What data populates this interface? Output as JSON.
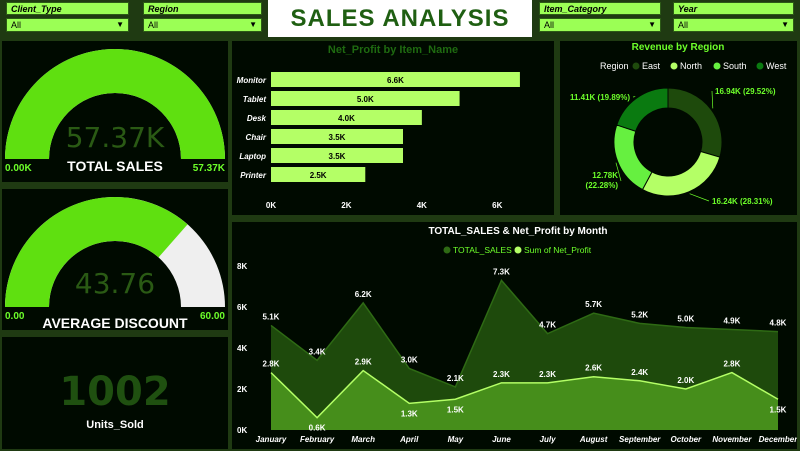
{
  "header": {
    "title": "SALES ANALYSIS"
  },
  "slicers": [
    {
      "label": "Client_Type",
      "value": "All"
    },
    {
      "label": "Region",
      "value": "All"
    },
    {
      "label": "Item_Category",
      "value": "All"
    },
    {
      "label": "Year",
      "value": "All"
    }
  ],
  "kpis": {
    "total_sales": {
      "value": "57.37K",
      "label": "TOTAL SALES",
      "min": "0.00K",
      "max": "57.37K",
      "fraction": 1.0
    },
    "avg_discount": {
      "value": "43.76",
      "label": "AVERAGE DISCOUNT",
      "min": "0.00",
      "max": "60.00",
      "fraction": 0.7293
    },
    "units_sold": {
      "value": "1002",
      "label": "Units_Sold"
    }
  },
  "colors": {
    "accent": "#5fe010",
    "dark_green": "#1e4a0c",
    "light_green": "#b4ff66",
    "background": "#000a00",
    "gauge_track": "#efefef"
  },
  "chart_data": [
    {
      "type": "bar",
      "title": "Net_Profit by Item_Name",
      "categories": [
        "Monitor",
        "Tablet",
        "Desk",
        "Chair",
        "Laptop",
        "Printer"
      ],
      "values": [
        6.6,
        5.0,
        4.0,
        3.5,
        3.5,
        2.5
      ],
      "data_labels": [
        "6.6K",
        "5.0K",
        "4.0K",
        "3.5K",
        "3.5K",
        "2.5K"
      ],
      "x_ticks": [
        "0K",
        "2K",
        "4K",
        "6K"
      ],
      "xlim": [
        0,
        7
      ],
      "orientation": "horizontal"
    },
    {
      "type": "pie",
      "title": "Revenue by Region",
      "legend_title": "Region",
      "legend_position": "top",
      "slices": [
        {
          "name": "East",
          "value": 16.94,
          "label": "16.94K (29.52%)",
          "color": "#1e4a0c"
        },
        {
          "name": "North",
          "value": 16.24,
          "label": "16.24K (28.31%)",
          "color": "#b4ff66"
        },
        {
          "name": "South",
          "value": 12.78,
          "label": "12.78K (22.28%)",
          "color": "#66f040"
        },
        {
          "name": "West",
          "value": 11.41,
          "label": "11.41K (19.89%)",
          "color": "#0a7a10"
        }
      ]
    },
    {
      "type": "area",
      "title": "TOTAL_SALES & Net_Profit by Month",
      "legend_position": "top",
      "categories": [
        "January",
        "February",
        "March",
        "April",
        "May",
        "June",
        "July",
        "August",
        "September",
        "October",
        "November",
        "December"
      ],
      "y_ticks": [
        "0K",
        "2K",
        "4K",
        "6K",
        "8K"
      ],
      "ylim": [
        0,
        8
      ],
      "series": [
        {
          "name": "TOTAL_SALES",
          "color": "#1e4a0c",
          "values": [
            5.1,
            3.4,
            6.2,
            3.0,
            2.1,
            7.3,
            4.7,
            5.7,
            5.2,
            5.0,
            4.9,
            4.8
          ],
          "labels": [
            "5.1K",
            "3.4K",
            "6.2K",
            "3.0K",
            "2.1K",
            "7.3K",
            "4.7K",
            "5.7K",
            "5.2K",
            "5.0K",
            "4.9K",
            "4.8K"
          ]
        },
        {
          "name": "Sum of Net_Profit",
          "color": "#b4ff66",
          "values": [
            2.8,
            0.6,
            2.9,
            1.3,
            1.5,
            2.3,
            2.3,
            2.6,
            2.4,
            2.0,
            2.8,
            1.5
          ],
          "labels": [
            "2.8K",
            "0.6K",
            "2.9K",
            "1.3K",
            "1.5K",
            "2.3K",
            "2.3K",
            "2.6K",
            "2.4K",
            "2.0K",
            "2.8K",
            "1.5K"
          ]
        }
      ]
    }
  ]
}
